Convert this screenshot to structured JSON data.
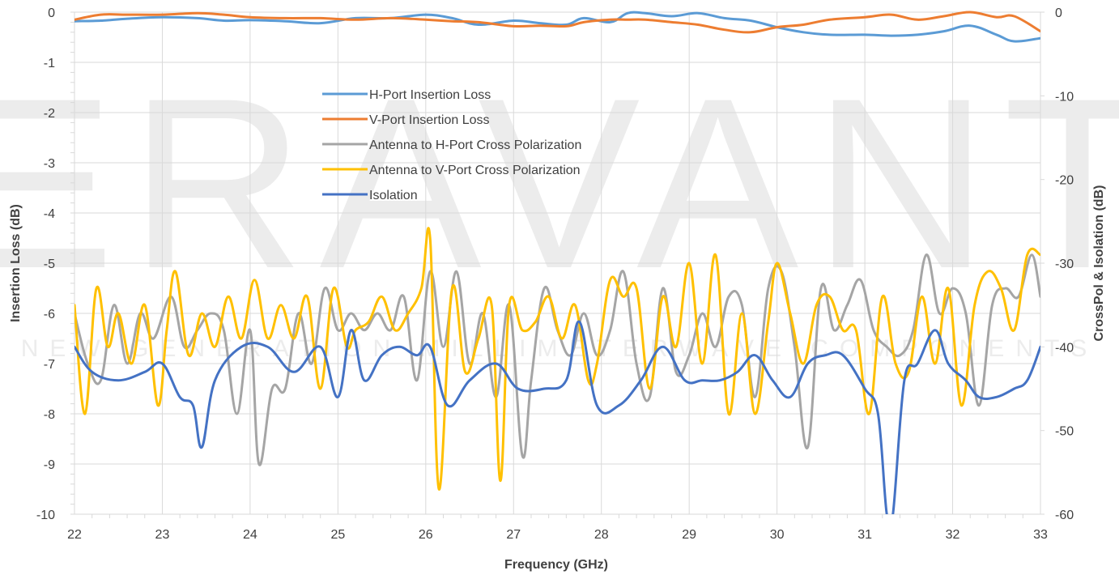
{
  "watermark": {
    "logo": "ERAVANT",
    "tagline": "NEW GENERATION MILLIMETERWAVE COMPONENTS"
  },
  "colors": {
    "h_port_il": "#5b9bd5",
    "v_port_il": "#ed7d31",
    "h_xpol": "#a5a5a5",
    "v_xpol": "#ffc000",
    "isolation": "#4472c4",
    "grid": "#d9d9d9",
    "axis_text": "#404040"
  },
  "chart_data": {
    "type": "line",
    "xlabel": "Frequency (GHz)",
    "ylabel_left": "Insertion Loss (dB)",
    "ylabel_right": "CrossPol & Isolation (dB)",
    "xlim": [
      22,
      33
    ],
    "ylim_left": [
      -10,
      0
    ],
    "ylim_right": [
      -60,
      0
    ],
    "x_ticks": [
      "22",
      "23",
      "24",
      "25",
      "26",
      "27",
      "28",
      "29",
      "30",
      "31",
      "32",
      "33"
    ],
    "y_left_ticks": [
      "0",
      "-1",
      "-2",
      "-3",
      "-4",
      "-5",
      "-6",
      "-7",
      "-8",
      "-9",
      "-10"
    ],
    "y_right_ticks": [
      "0",
      "-10",
      "-20",
      "-30",
      "-40",
      "-50",
      "-60"
    ],
    "grid": true,
    "legend_position": "upper-center",
    "series": [
      {
        "name": "H-Port Insertion Loss",
        "axis": "left",
        "color_key": "h_port_il",
        "x": [
          22,
          22.3,
          22.6,
          23,
          23.4,
          23.7,
          24,
          24.4,
          24.8,
          25.2,
          25.6,
          26,
          26.3,
          26.6,
          27,
          27.3,
          27.6,
          27.8,
          28.1,
          28.3,
          28.5,
          28.8,
          29.1,
          29.4,
          29.7,
          30,
          30.3,
          30.6,
          31,
          31.3,
          31.6,
          31.9,
          32.2,
          32.5,
          32.7,
          33
        ],
        "y": [
          -0.18,
          -0.17,
          -0.13,
          -0.1,
          -0.12,
          -0.17,
          -0.16,
          -0.18,
          -0.22,
          -0.12,
          -0.12,
          -0.05,
          -0.12,
          -0.25,
          -0.17,
          -0.22,
          -0.25,
          -0.12,
          -0.2,
          -0.02,
          -0.02,
          -0.08,
          -0.02,
          -0.12,
          -0.17,
          -0.3,
          -0.4,
          -0.45,
          -0.45,
          -0.47,
          -0.45,
          -0.38,
          -0.27,
          -0.45,
          -0.58,
          -0.52
        ]
      },
      {
        "name": "V-Port Insertion Loss",
        "axis": "left",
        "color_key": "v_port_il",
        "x": [
          22,
          22.3,
          22.6,
          23,
          23.4,
          23.7,
          24,
          24.4,
          24.8,
          25.2,
          25.6,
          26,
          26.3,
          26.6,
          27,
          27.3,
          27.6,
          27.8,
          28.1,
          28.3,
          28.5,
          28.8,
          29.1,
          29.4,
          29.7,
          30,
          30.3,
          30.6,
          31,
          31.3,
          31.6,
          31.9,
          32.2,
          32.5,
          32.7,
          33
        ],
        "y": [
          -0.15,
          -0.05,
          -0.05,
          -0.05,
          -0.02,
          -0.05,
          -0.1,
          -0.12,
          -0.12,
          -0.15,
          -0.12,
          -0.15,
          -0.18,
          -0.2,
          -0.28,
          -0.27,
          -0.28,
          -0.2,
          -0.15,
          -0.15,
          -0.15,
          -0.2,
          -0.25,
          -0.35,
          -0.4,
          -0.3,
          -0.25,
          -0.15,
          -0.1,
          -0.05,
          -0.15,
          -0.08,
          0,
          -0.1,
          -0.08,
          -0.38
        ]
      },
      {
        "name": "Antenna to H-Port Cross Polarization",
        "axis": "right",
        "color_key": "h_xpol",
        "x": [
          22,
          22.15,
          22.3,
          22.45,
          22.6,
          22.75,
          22.9,
          23.1,
          23.25,
          23.4,
          23.55,
          23.7,
          23.85,
          24,
          24.1,
          24.25,
          24.4,
          24.55,
          24.7,
          24.85,
          25,
          25.15,
          25.3,
          25.45,
          25.6,
          25.75,
          25.9,
          26.05,
          26.2,
          26.35,
          26.5,
          26.65,
          26.8,
          26.95,
          27.1,
          27.2,
          27.35,
          27.5,
          27.65,
          27.8,
          27.95,
          28.1,
          28.25,
          28.4,
          28.55,
          28.7,
          28.85,
          29,
          29.15,
          29.3,
          29.45,
          29.6,
          29.75,
          29.9,
          30.05,
          30.2,
          30.35,
          30.5,
          30.65,
          30.8,
          30.95,
          31.1,
          31.25,
          31.4,
          31.55,
          31.7,
          31.85,
          32,
          32.15,
          32.3,
          32.45,
          32.6,
          32.75,
          32.9,
          33
        ],
        "y": [
          -36,
          -42,
          -44,
          -35,
          -42,
          -36,
          -39,
          -34,
          -40,
          -38,
          -36,
          -38,
          -48,
          -38,
          -54,
          -45,
          -45,
          -36,
          -42,
          -33,
          -38,
          -36,
          -38,
          -36,
          -38,
          -34,
          -44,
          -31,
          -40,
          -31,
          -42,
          -36,
          -46,
          -35,
          -53,
          -44,
          -33,
          -38,
          -41,
          -36,
          -41,
          -38,
          -31,
          -42,
          -46,
          -33,
          -43,
          -41,
          -36,
          -40,
          -34,
          -35,
          -46,
          -33,
          -31,
          -40,
          -52,
          -33,
          -38,
          -35,
          -32,
          -38,
          -40,
          -41,
          -38,
          -29,
          -36,
          -33,
          -36,
          -47,
          -35,
          -33,
          -34,
          -29,
          -34
        ]
      },
      {
        "name": "Antenna to V-Port Cross Polarization",
        "axis": "right",
        "color_key": "v_xpol",
        "x": [
          22,
          22.12,
          22.25,
          22.38,
          22.5,
          22.65,
          22.8,
          22.95,
          23.05,
          23.15,
          23.3,
          23.45,
          23.6,
          23.75,
          23.9,
          24.05,
          24.2,
          24.35,
          24.5,
          24.65,
          24.8,
          24.95,
          25.1,
          25.2,
          25.35,
          25.5,
          25.65,
          25.8,
          25.95,
          26.05,
          26.15,
          26.3,
          26.45,
          26.6,
          26.75,
          26.85,
          26.95,
          27.1,
          27.25,
          27.4,
          27.55,
          27.7,
          27.85,
          27.95,
          28.1,
          28.25,
          28.4,
          28.55,
          28.7,
          28.85,
          29,
          29.15,
          29.3,
          29.45,
          29.6,
          29.75,
          29.9,
          30,
          30.15,
          30.3,
          30.45,
          30.6,
          30.75,
          30.9,
          31.05,
          31.2,
          31.35,
          31.5,
          31.65,
          31.8,
          31.95,
          32.1,
          32.25,
          32.4,
          32.55,
          32.7,
          32.85,
          33
        ],
        "y": [
          -35,
          -48,
          -33,
          -40,
          -36,
          -42,
          -35,
          -47,
          -38,
          -31,
          -41,
          -36,
          -40,
          -34,
          -39,
          -32,
          -39,
          -35,
          -39,
          -34,
          -45,
          -33,
          -40,
          -38,
          -37,
          -34,
          -38,
          -36,
          -33,
          -27,
          -57,
          -33,
          -43,
          -39,
          -35,
          -56,
          -35,
          -38,
          -37,
          -34,
          -39,
          -35,
          -44,
          -42,
          -32,
          -34,
          -33,
          -45,
          -34,
          -40,
          -30,
          -42,
          -29,
          -48,
          -36,
          -48,
          -37,
          -30,
          -36,
          -42,
          -35,
          -34,
          -38,
          -38,
          -48,
          -34,
          -42,
          -43,
          -34,
          -42,
          -33,
          -47,
          -35,
          -31,
          -33,
          -38,
          -29,
          -29
        ]
      },
      {
        "name": "Isolation",
        "axis": "right",
        "color_key": "isolation",
        "x": [
          22,
          22.2,
          22.5,
          22.8,
          23,
          23.2,
          23.35,
          23.45,
          23.6,
          23.9,
          24.2,
          24.5,
          24.8,
          25,
          25.15,
          25.3,
          25.5,
          25.7,
          25.9,
          26.05,
          26.25,
          26.5,
          26.8,
          27.05,
          27.35,
          27.6,
          27.75,
          27.95,
          28.2,
          28.45,
          28.7,
          28.95,
          29.15,
          29.35,
          29.55,
          29.75,
          29.95,
          30.15,
          30.35,
          30.55,
          30.75,
          31,
          31.15,
          31.25,
          31.32,
          31.45,
          31.6,
          31.8,
          31.95,
          32.15,
          32.3,
          32.5,
          32.7,
          32.85,
          33
        ],
        "y": [
          -40,
          -43,
          -44,
          -43,
          -42,
          -46,
          -47,
          -52,
          -44,
          -40,
          -40,
          -43,
          -40,
          -46,
          -38,
          -44,
          -41,
          -40,
          -41,
          -40,
          -47,
          -44,
          -42,
          -45,
          -45,
          -44,
          -37,
          -47,
          -47,
          -44,
          -40,
          -44,
          -44,
          -44,
          -43,
          -41,
          -44,
          -46,
          -42,
          -41,
          -41,
          -45,
          -48,
          -60,
          -60,
          -44,
          -42,
          -38,
          -42,
          -44,
          -46,
          -46,
          -45,
          -44,
          -40
        ]
      }
    ]
  }
}
